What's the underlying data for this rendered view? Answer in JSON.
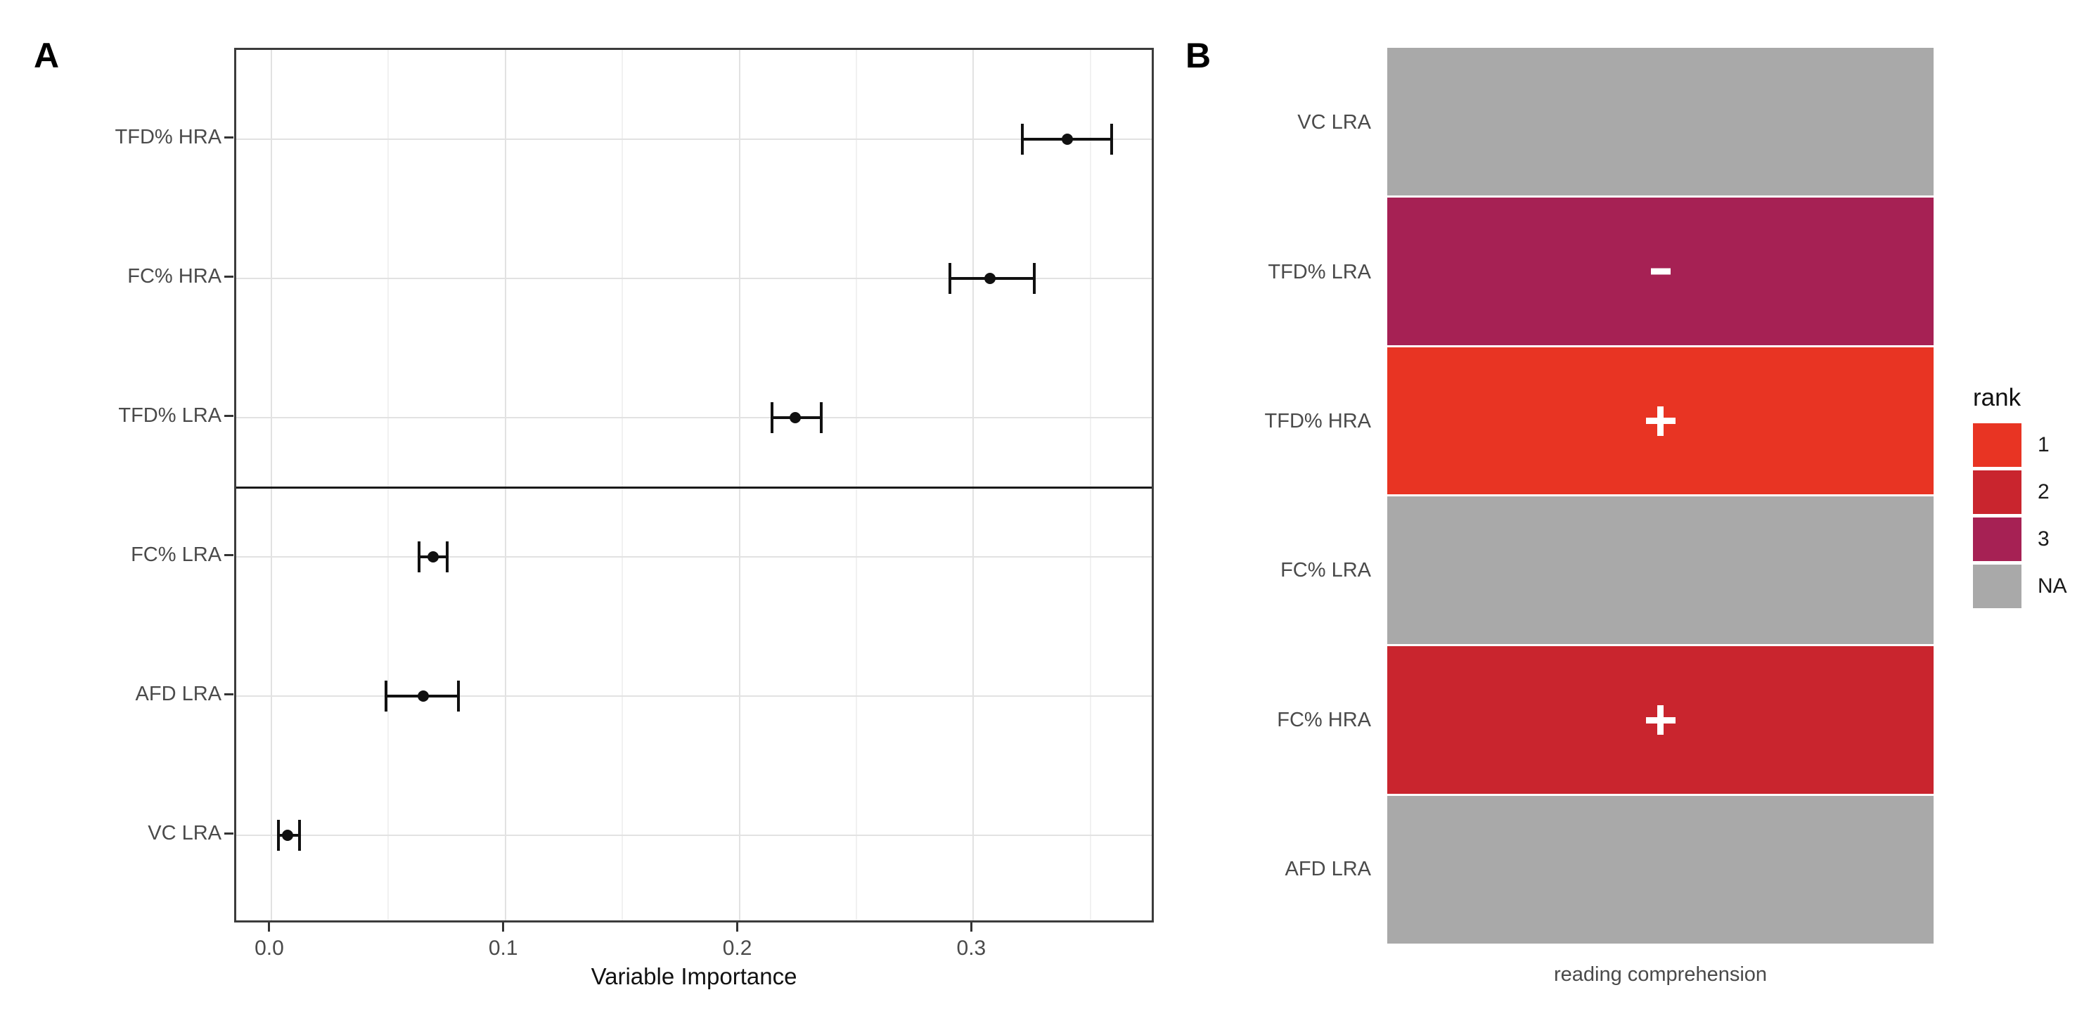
{
  "figure": {
    "panel_a_tag": "A",
    "panel_b_tag": "B"
  },
  "chart_data": [
    {
      "type": "scatter",
      "panel": "A",
      "subtype": "dot-with-error-bars",
      "xlabel": "Variable Importance",
      "ylabel": "",
      "xlim": [
        -0.015,
        0.378
      ],
      "grid": true,
      "legend_position": "none",
      "x_major_ticks": [
        {
          "v": 0.0,
          "label": "0.0"
        },
        {
          "v": 0.1,
          "label": "0.1"
        },
        {
          "v": 0.2,
          "label": "0.2"
        },
        {
          "v": 0.3,
          "label": "0.3"
        }
      ],
      "x_minor_ticks": [
        0.05,
        0.15,
        0.25,
        0.35
      ],
      "categories": [
        {
          "label": "TFD% HRA",
          "value": 0.34,
          "low": 0.321,
          "high": 0.359
        },
        {
          "label": "FC% HRA",
          "value": 0.307,
          "low": 0.29,
          "high": 0.326
        },
        {
          "label": "TFD% LRA",
          "value": 0.224,
          "low": 0.214,
          "high": 0.235
        },
        {
          "label": "FC% LRA",
          "value": 0.069,
          "low": 0.063,
          "high": 0.075
        },
        {
          "label": "AFD LRA",
          "value": 0.065,
          "low": 0.049,
          "high": 0.08
        },
        {
          "label": "VC LRA",
          "value": 0.007,
          "low": 0.003,
          "high": 0.012
        }
      ],
      "separator_after_index": 2
    },
    {
      "type": "heatmap",
      "panel": "B",
      "xlabel": "reading comprehension",
      "rows": [
        {
          "label": "VC LRA",
          "rank": "NA",
          "sign": ""
        },
        {
          "label": "TFD% LRA",
          "rank": "3",
          "sign": "-"
        },
        {
          "label": "TFD% HRA",
          "rank": "1",
          "sign": "+"
        },
        {
          "label": "FC% LRA",
          "rank": "NA",
          "sign": ""
        },
        {
          "label": "FC% HRA",
          "rank": "2",
          "sign": "+"
        },
        {
          "label": "AFD LRA",
          "rank": "NA",
          "sign": ""
        }
      ],
      "rank_colors": {
        "1": "#E83423",
        "2": "#C9252E",
        "3": "#A62154",
        "NA": "#A9A9A9"
      },
      "legend": {
        "title": "rank",
        "position": "right",
        "entries": [
          {
            "label": "1",
            "rank": "1"
          },
          {
            "label": "2",
            "rank": "2"
          },
          {
            "label": "3",
            "rank": "3"
          },
          {
            "label": "NA",
            "rank": "NA"
          }
        ]
      }
    }
  ]
}
